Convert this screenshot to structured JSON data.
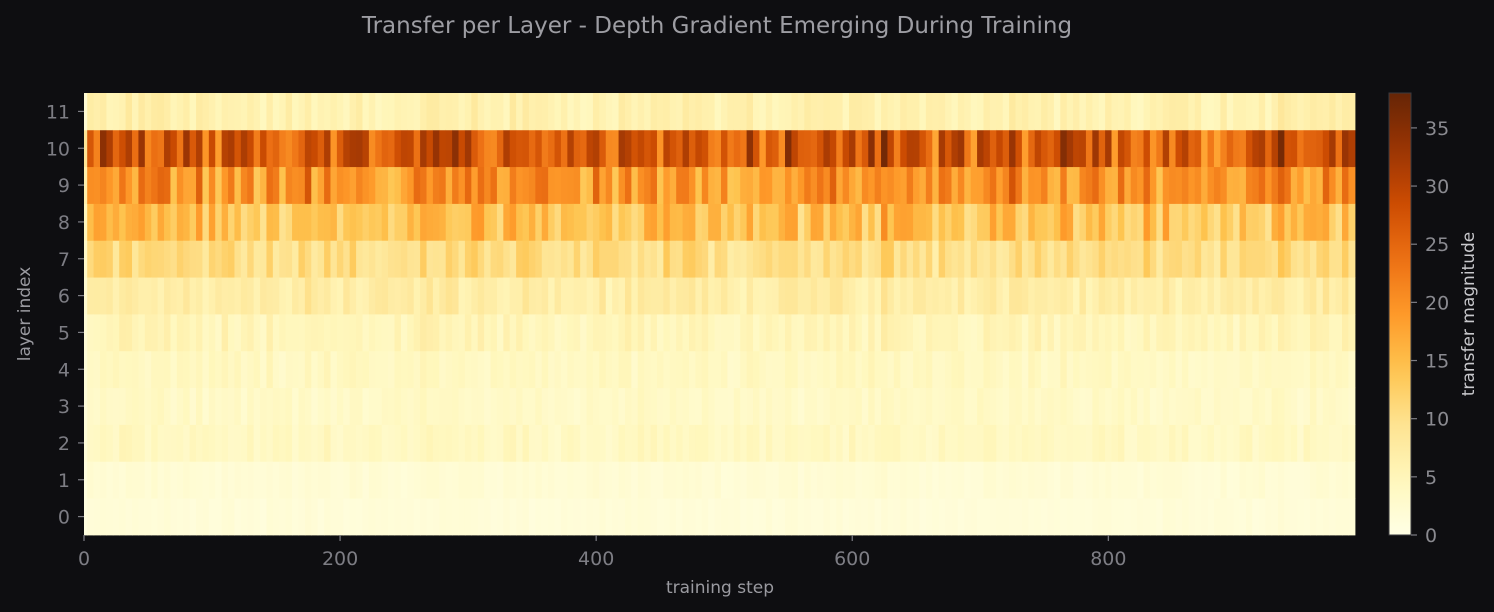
{
  "chart_data": {
    "type": "heatmap",
    "title": "Transfer per Layer  - Depth Gradient Emerging During Training",
    "xlabel": "training step",
    "ylabel": "layer index",
    "xlim": [
      0,
      995
    ],
    "ylim": [
      -0.5,
      11.5
    ],
    "x_ticks": [
      0,
      200,
      400,
      600,
      800
    ],
    "y_ticks": [
      0,
      1,
      2,
      3,
      4,
      5,
      6,
      7,
      8,
      9,
      10,
      11
    ],
    "grid": false,
    "colormap": "YlOrBr",
    "colorbar": {
      "label": "transfer magnitude",
      "range": [
        0,
        38
      ],
      "ticks": [
        0,
        5,
        10,
        15,
        20,
        25,
        30,
        35
      ]
    },
    "step_start": 0,
    "step_size": 5,
    "num_steps": 199,
    "layer_baseline": [
      {
        "layer": 0,
        "mean": 1.5
      },
      {
        "layer": 1,
        "mean": 2.0
      },
      {
        "layer": 2,
        "mean": 4.0
      },
      {
        "layer": 3,
        "mean": 3.5
      },
      {
        "layer": 4,
        "mean": 4.0
      },
      {
        "layer": 5,
        "mean": 5.0
      },
      {
        "layer": 6,
        "mean": 7.0
      },
      {
        "layer": 7,
        "mean": 10.0
      },
      {
        "layer": 8,
        "mean": 14.0
      },
      {
        "layer": 9,
        "mean": 19.0
      },
      {
        "layer": 10,
        "mean": 26.0
      },
      {
        "layer": 11,
        "mean": 6.0
      }
    ]
  }
}
